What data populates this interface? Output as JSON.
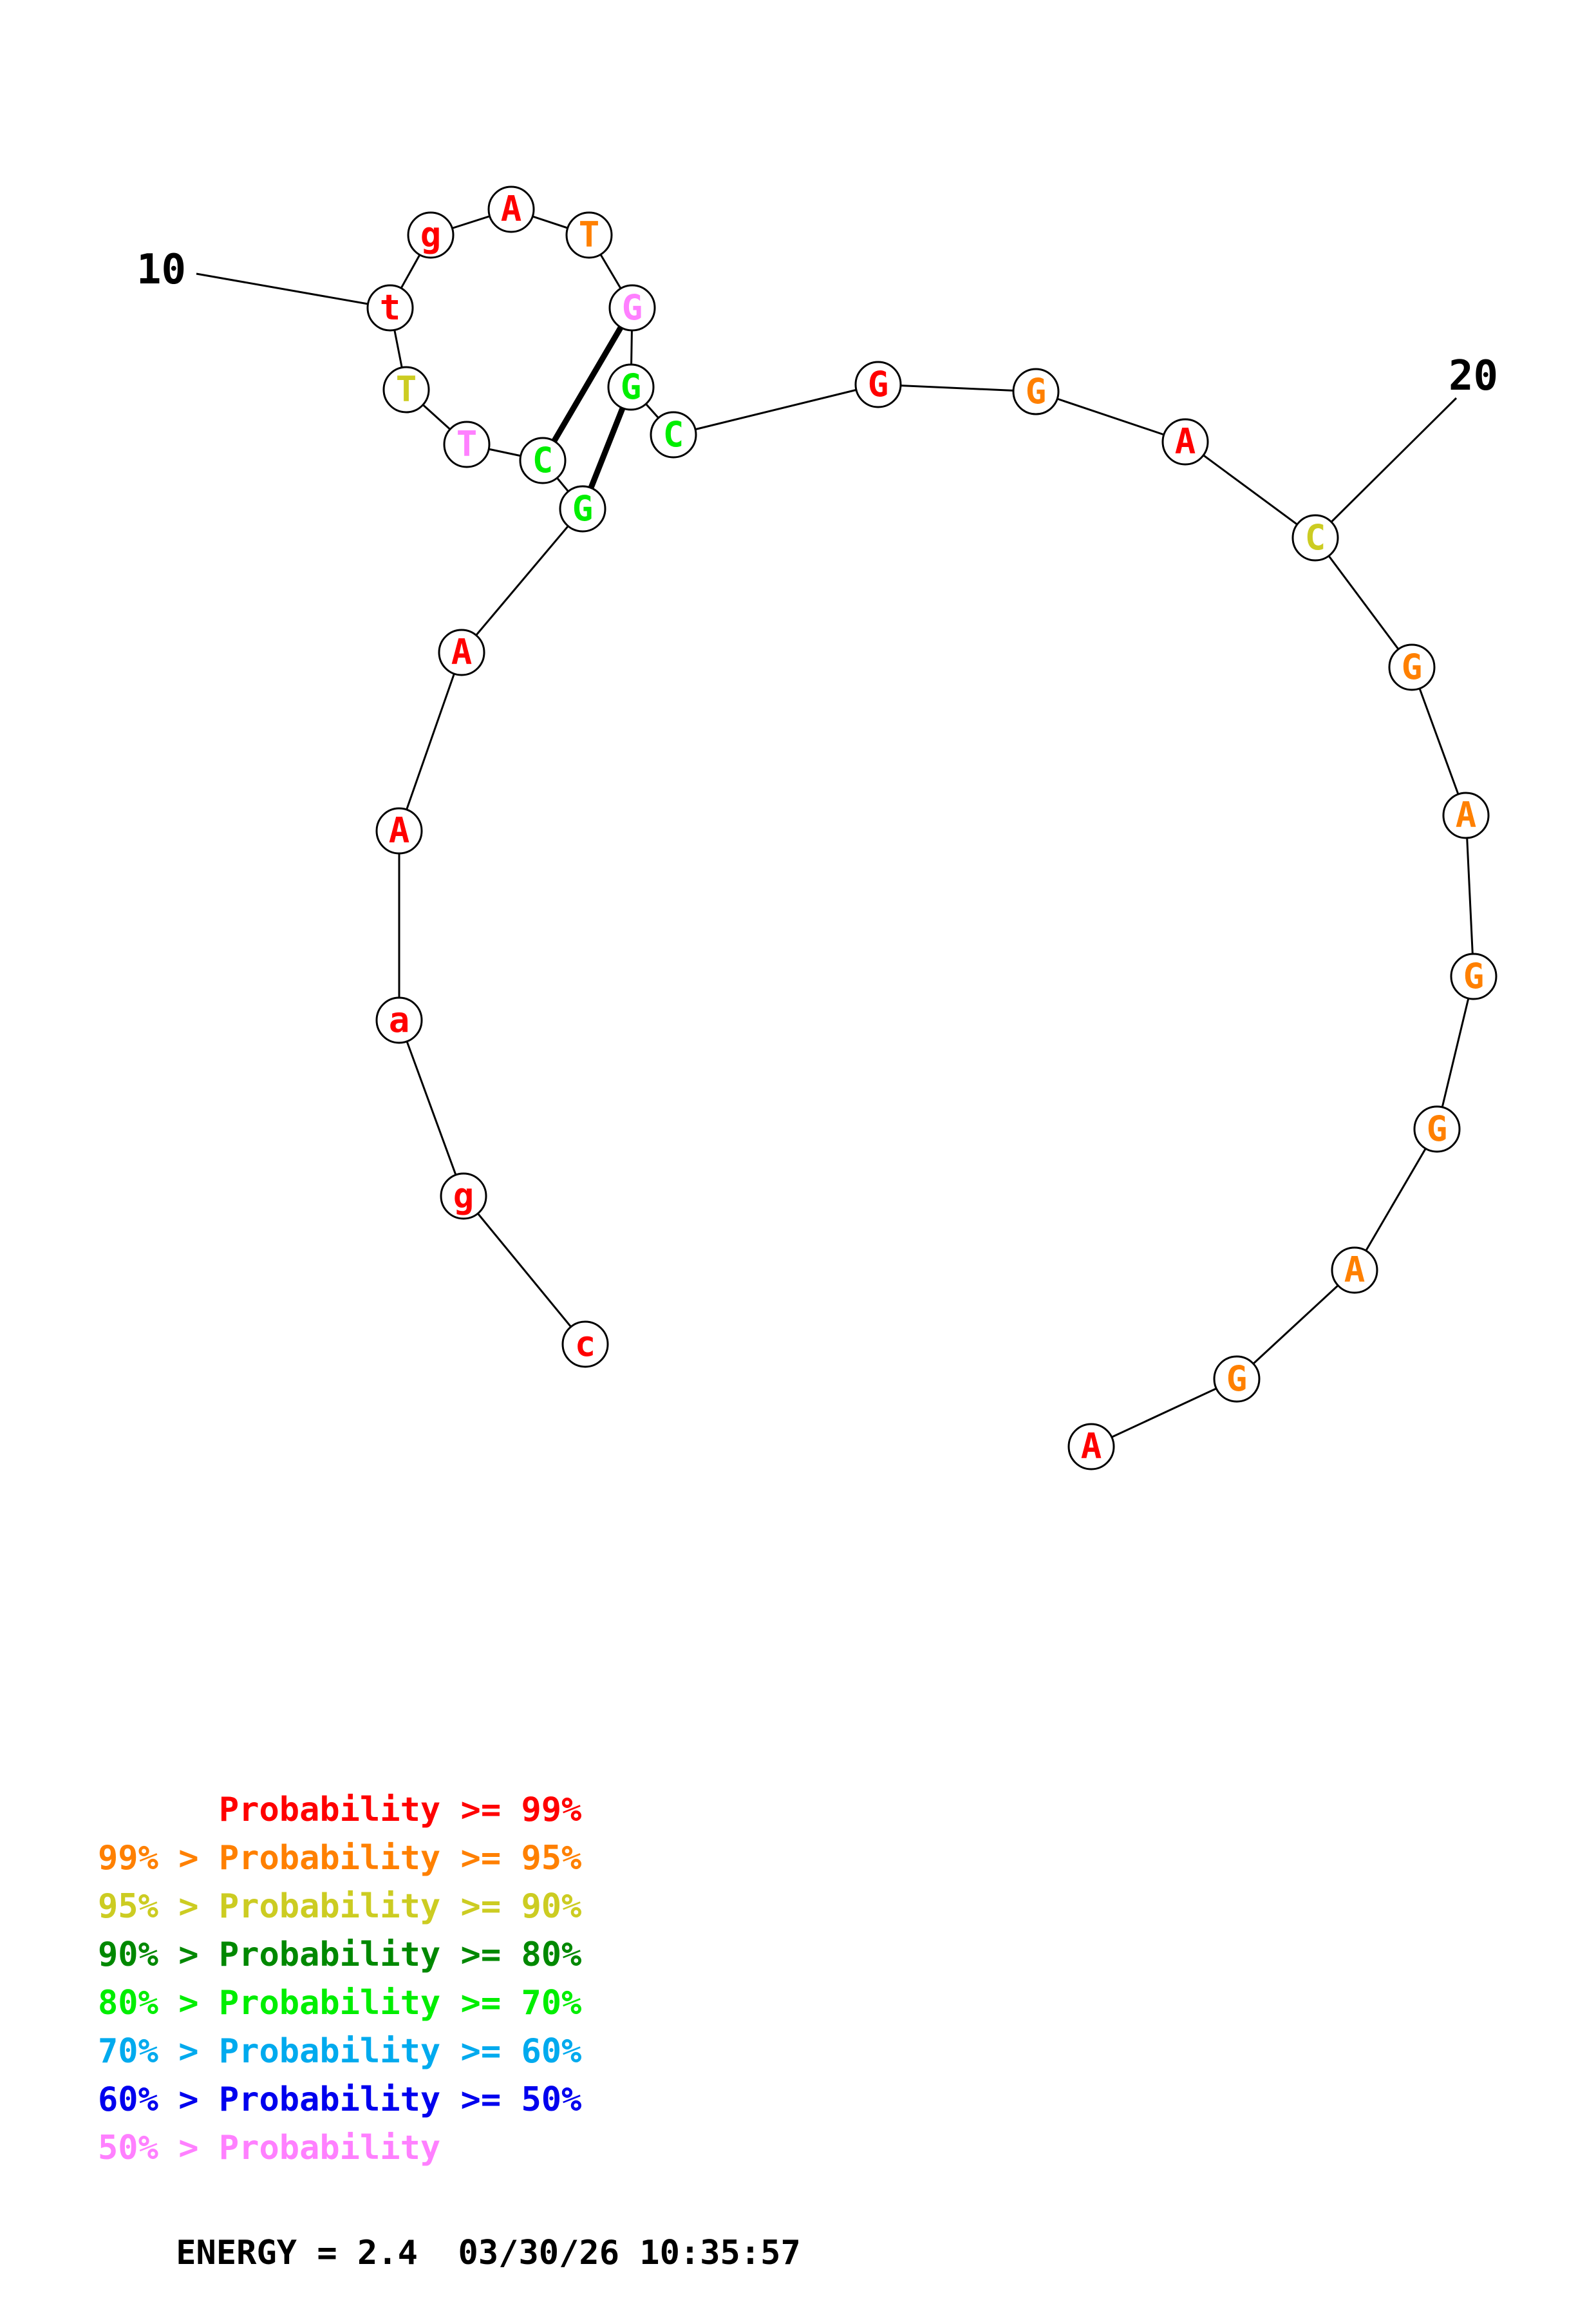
{
  "structure": {
    "nucleotides": [
      {
        "letter": "c",
        "color": "#ff0000"
      },
      {
        "letter": "g",
        "color": "#ff0000"
      },
      {
        "letter": "a",
        "color": "#ff0000"
      },
      {
        "letter": "A",
        "color": "#ff0000"
      },
      {
        "letter": "A",
        "color": "#ff0000"
      },
      {
        "letter": "G",
        "color": "#00ee00"
      },
      {
        "letter": "C",
        "color": "#00ee00"
      },
      {
        "letter": "T",
        "color": "#ff80ff"
      },
      {
        "letter": "T",
        "color": "#cccc22"
      },
      {
        "letter": "t",
        "color": "#ff0000"
      },
      {
        "letter": "g",
        "color": "#ff0000"
      },
      {
        "letter": "A",
        "color": "#ff0000"
      },
      {
        "letter": "T",
        "color": "#ff8000"
      },
      {
        "letter": "G",
        "color": "#ff80ff"
      },
      {
        "letter": "G",
        "color": "#00ee00"
      },
      {
        "letter": "C",
        "color": "#00ee00"
      },
      {
        "letter": "G",
        "color": "#ff0000"
      },
      {
        "letter": "G",
        "color": "#ff8000"
      },
      {
        "letter": "A",
        "color": "#ff0000"
      },
      {
        "letter": "C",
        "color": "#cccc22"
      },
      {
        "letter": "G",
        "color": "#ff8000"
      },
      {
        "letter": "A",
        "color": "#ff8000"
      },
      {
        "letter": "G",
        "color": "#ff8000"
      },
      {
        "letter": "G",
        "color": "#ff8000"
      },
      {
        "letter": "A",
        "color": "#ff8000"
      },
      {
        "letter": "G",
        "color": "#ff8000"
      },
      {
        "letter": "A",
        "color": "#ff0000"
      }
    ],
    "pairs": [
      [
        6,
        15
      ],
      [
        7,
        14
      ]
    ],
    "position_labels": [
      {
        "position": 10,
        "text": "10"
      },
      {
        "position": 20,
        "text": "20"
      }
    ]
  },
  "legend": [
    {
      "prefix": "    ",
      "text": "Probability >= 99%",
      "color": "#ff0000"
    },
    {
      "prefix": "99% > ",
      "text": "Probability >= 95%",
      "color": "#ff8000"
    },
    {
      "prefix": "95% > ",
      "text": "Probability >= 90%",
      "color": "#cccc22"
    },
    {
      "prefix": "90% > ",
      "text": "Probability >= 80%",
      "color": "#008800"
    },
    {
      "prefix": "80% > ",
      "text": "Probability >= 70%",
      "color": "#00ee00"
    },
    {
      "prefix": "70% > ",
      "text": "Probability >= 60%",
      "color": "#00aaee"
    },
    {
      "prefix": "60% > ",
      "text": "Probability >= 50%",
      "color": "#0000ee"
    },
    {
      "prefix": "50% > ",
      "text": "Probability",
      "color": "#ff80ff"
    }
  ],
  "footer": {
    "energy": "ENERGY = 2.4",
    "timestamp": "03/30/26 10:35:57"
  }
}
